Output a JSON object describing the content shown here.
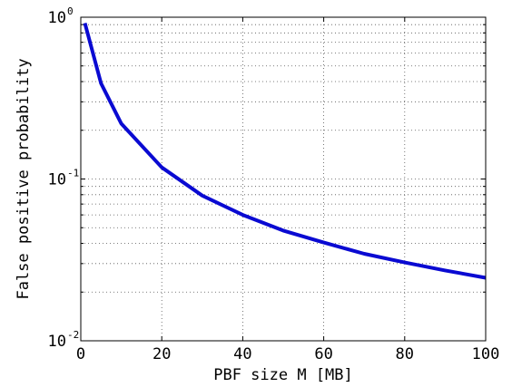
{
  "chart_data": {
    "type": "line",
    "title": "",
    "xlabel": "PBF size M [MB]",
    "ylabel": "False positive probability",
    "xlim": [
      0,
      100
    ],
    "ylim": [
      0.01,
      1
    ],
    "yscale": "log",
    "grid": true,
    "x_ticks": [
      0,
      20,
      40,
      60,
      80,
      100
    ],
    "x_tick_labels": [
      "0",
      "20",
      "40",
      "60",
      "80",
      "100"
    ],
    "y_ticks": [
      {
        "value": 1,
        "base": "10",
        "exp": "0"
      },
      {
        "value": 0.1,
        "base": "10",
        "exp": "-1"
      },
      {
        "value": 0.01,
        "base": "10",
        "exp": "-2"
      }
    ],
    "series": [
      {
        "color": "#0a0ad2",
        "x": [
          1,
          5,
          10,
          20,
          30,
          40,
          50,
          60,
          70,
          80,
          90,
          100
        ],
        "y": [
          0.92,
          0.39,
          0.22,
          0.118,
          0.079,
          0.06,
          0.048,
          0.0405,
          0.0345,
          0.0305,
          0.0272,
          0.0245
        ]
      }
    ]
  }
}
